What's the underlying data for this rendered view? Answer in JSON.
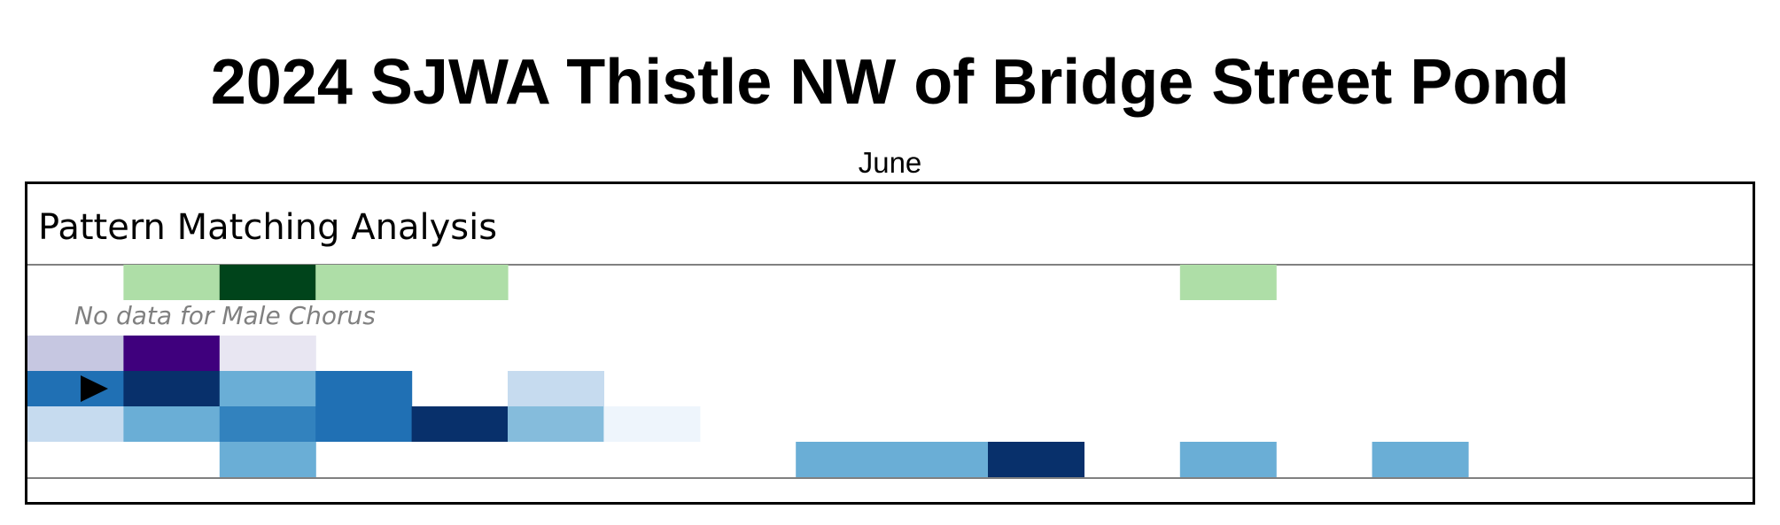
{
  "chart_data": {
    "type": "heatmap",
    "title": "2024 SJWA Thistle NW of Bridge Street Pond",
    "subtitle": "June",
    "section_title": "Pattern Matching Analysis",
    "annotations": [
      "No data for Male Chorus"
    ],
    "columns": 18,
    "rows": [
      {
        "color_scale": "greens",
        "values": [
          0,
          1,
          3,
          1,
          1,
          0,
          0,
          0,
          0,
          0,
          0,
          0,
          1,
          0,
          0,
          0,
          0,
          0
        ]
      },
      {
        "color_scale": "none",
        "values": [],
        "note": "No data for Male Chorus"
      },
      {
        "color_scale": "purples",
        "values": [
          1,
          3,
          0.5,
          0,
          0,
          0,
          0,
          0,
          0,
          0,
          0,
          0,
          0,
          0,
          0,
          0,
          0,
          0
        ]
      },
      {
        "color_scale": "blues",
        "values": [
          4,
          5,
          3,
          4,
          0,
          1,
          0,
          0,
          0,
          0,
          0,
          0,
          0,
          0,
          0,
          0,
          0,
          0
        ],
        "marker_column": 0
      },
      {
        "color_scale": "blues",
        "values": [
          1,
          3,
          3.5,
          4,
          5,
          2.5,
          0.3,
          0,
          0,
          0,
          0,
          0,
          0,
          0,
          0,
          0,
          0,
          0
        ]
      },
      {
        "color_scale": "blues",
        "values": [
          0,
          0,
          3,
          0,
          0,
          0,
          0,
          0,
          3,
          3,
          5,
          0,
          3,
          0,
          3,
          0,
          0,
          0
        ]
      }
    ],
    "palettes": {
      "greens": [
        "#ffffff",
        "#aedea7",
        "#37a055",
        "#00441b"
      ],
      "purples": [
        "#ffffff",
        "#e8e6f2",
        "#c6c7e1",
        "#3f007d"
      ],
      "blues": [
        "#ffffff",
        "#eef5fc",
        "#c6dbef",
        "#85bcdc",
        "#6aaed6",
        "#3282be",
        "#2070b4",
        "#08306b"
      ]
    },
    "marker": "play-marker"
  }
}
